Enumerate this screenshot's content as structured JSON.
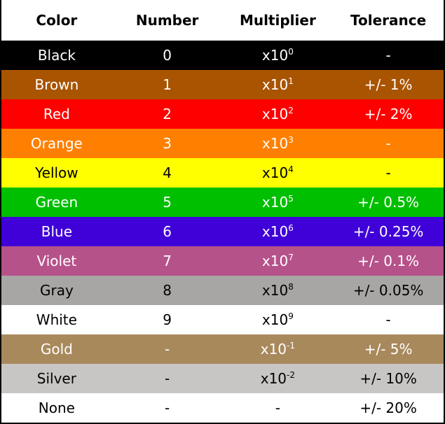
{
  "table": {
    "header": [
      "Color",
      "Number",
      "Multiplier",
      "Tolerance"
    ],
    "rows": [
      {
        "cells": [
          "Black",
          "0",
          {
            "base": "x10",
            "exp": "0"
          },
          "-"
        ],
        "background": "#000000",
        "text_color": "#ffffff"
      },
      {
        "cells": [
          "Brown",
          "1",
          {
            "base": "x10",
            "exp": "1"
          },
          "+/- 1%"
        ],
        "background": "#a95400",
        "text_color": "#ffffff"
      },
      {
        "cells": [
          "Red",
          "2",
          {
            "base": "x10",
            "exp": "2"
          },
          "+/- 2%"
        ],
        "background": "#ff0000",
        "text_color": "#ffffff"
      },
      {
        "cells": [
          "Orange",
          "3",
          {
            "base": "x10",
            "exp": "3"
          },
          "-"
        ],
        "background": "#ff7f00",
        "text_color": "#ffffff"
      },
      {
        "cells": [
          "Yellow",
          "4",
          {
            "base": "x10",
            "exp": "4"
          },
          "-"
        ],
        "background": "#ffff00",
        "text_color": "#000000"
      },
      {
        "cells": [
          "Green",
          "5",
          {
            "base": "x10",
            "exp": "5"
          },
          "+/- 0.5%"
        ],
        "background": "#00bf00",
        "text_color": "#ffffff"
      },
      {
        "cells": [
          "Blue",
          "6",
          {
            "base": "x10",
            "exp": "6"
          },
          "+/- 0.25%"
        ],
        "background": "#4000d8",
        "text_color": "#ffffff"
      },
      {
        "cells": [
          "Violet",
          "7",
          {
            "base": "x10",
            "exp": "7"
          },
          "+/- 0.1%"
        ],
        "background": "#b6528a",
        "text_color": "#ffffff"
      },
      {
        "cells": [
          "Gray",
          "8",
          {
            "base": "x10",
            "exp": "8"
          },
          "+/- 0.05%"
        ],
        "background": "#a8a6a4",
        "text_color": "#000000"
      },
      {
        "cells": [
          "White",
          "9",
          {
            "base": "x10",
            "exp": "9"
          },
          "-"
        ],
        "background": "#ffffff",
        "text_color": "#000000"
      },
      {
        "cells": [
          "Gold",
          "-",
          {
            "base": "x10",
            "exp": "-1"
          },
          "+/- 5%"
        ],
        "background": "#a8895c",
        "text_color": "#ffffff"
      },
      {
        "cells": [
          "Silver",
          "-",
          {
            "base": "x10",
            "exp": "-2"
          },
          "+/- 10%"
        ],
        "background": "#c8c6c4",
        "text_color": "#000000"
      },
      {
        "cells": [
          "None",
          "-",
          "-",
          "+/- 20%"
        ],
        "background": "#ffffff",
        "text_color": "#000000"
      }
    ]
  }
}
